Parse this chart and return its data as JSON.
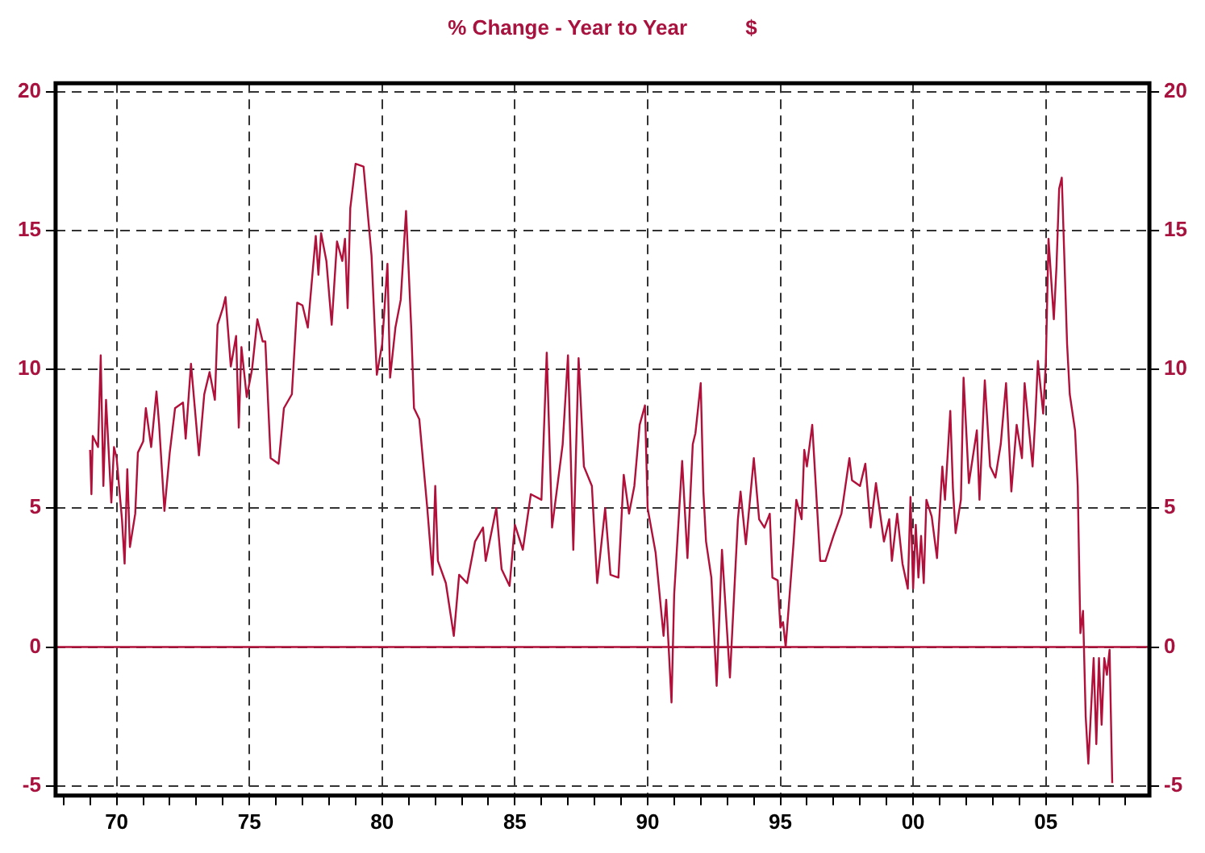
{
  "chart_data": {
    "type": "line",
    "title": "% Change - Year to Year          $",
    "xlim": [
      1967.7,
      2008.9
    ],
    "xticks": [
      {
        "value": 1968,
        "label": null
      },
      {
        "value": 1969,
        "label": null
      },
      {
        "value": 1970,
        "label": "70"
      },
      {
        "value": 1971,
        "label": null
      },
      {
        "value": 1972,
        "label": null
      },
      {
        "value": 1973,
        "label": null
      },
      {
        "value": 1974,
        "label": null
      },
      {
        "value": 1975,
        "label": "75"
      },
      {
        "value": 1976,
        "label": null
      },
      {
        "value": 1977,
        "label": null
      },
      {
        "value": 1978,
        "label": null
      },
      {
        "value": 1979,
        "label": null
      },
      {
        "value": 1980,
        "label": "80"
      },
      {
        "value": 1981,
        "label": null
      },
      {
        "value": 1982,
        "label": null
      },
      {
        "value": 1983,
        "label": null
      },
      {
        "value": 1984,
        "label": null
      },
      {
        "value": 1985,
        "label": "85"
      },
      {
        "value": 1986,
        "label": null
      },
      {
        "value": 1987,
        "label": null
      },
      {
        "value": 1988,
        "label": null
      },
      {
        "value": 1989,
        "label": null
      },
      {
        "value": 1990,
        "label": "90"
      },
      {
        "value": 1991,
        "label": null
      },
      {
        "value": 1992,
        "label": null
      },
      {
        "value": 1993,
        "label": null
      },
      {
        "value": 1994,
        "label": null
      },
      {
        "value": 1995,
        "label": "95"
      },
      {
        "value": 1996,
        "label": null
      },
      {
        "value": 1997,
        "label": null
      },
      {
        "value": 1998,
        "label": null
      },
      {
        "value": 1999,
        "label": null
      },
      {
        "value": 2000,
        "label": "00"
      },
      {
        "value": 2001,
        "label": null
      },
      {
        "value": 2002,
        "label": null
      },
      {
        "value": 2003,
        "label": null
      },
      {
        "value": 2004,
        "label": null
      },
      {
        "value": 2005,
        "label": "05"
      },
      {
        "value": 2006,
        "label": null
      },
      {
        "value": 2007,
        "label": null
      },
      {
        "value": 2008,
        "label": null
      }
    ],
    "ylim": [
      -5.35,
      20.3
    ],
    "yticks": [
      -5,
      0,
      5,
      10,
      15,
      20
    ],
    "y2lim": [
      -5.35,
      20.3
    ],
    "y2ticks": [
      -5,
      0,
      5,
      10,
      15,
      20
    ],
    "grid": true,
    "legend": false,
    "marker": "none",
    "line_style": "solid",
    "ref_lines": [
      {
        "axis": "y",
        "value": 0,
        "color": "#b0103a"
      }
    ],
    "x": [
      1969.0,
      1969.05,
      1969.1,
      1969.3,
      1969.4,
      1969.5,
      1969.6,
      1969.8,
      1969.9,
      1970.0,
      1970.2,
      1970.3,
      1970.4,
      1970.5,
      1970.7,
      1970.8,
      1971.0,
      1971.1,
      1971.3,
      1971.5,
      1971.6,
      1971.8,
      1972.0,
      1972.2,
      1972.5,
      1972.6,
      1972.8,
      1973.1,
      1973.3,
      1973.5,
      1973.7,
      1973.8,
      1974.0,
      1974.1,
      1974.3,
      1974.5,
      1974.6,
      1974.7,
      1974.9,
      1975.1,
      1975.3,
      1975.5,
      1975.6,
      1975.8,
      1976.1,
      1976.3,
      1976.6,
      1976.8,
      1977.0,
      1977.2,
      1977.5,
      1977.6,
      1977.7,
      1977.9,
      1978.1,
      1978.3,
      1978.5,
      1978.6,
      1978.7,
      1978.8,
      1979.0,
      1979.3,
      1979.6,
      1979.8,
      1980.0,
      1980.2,
      1980.3,
      1980.5,
      1980.7,
      1980.9,
      1981.1,
      1981.2,
      1981.4,
      1981.7,
      1981.9,
      1982.0,
      1982.1,
      1982.4,
      1982.7,
      1982.9,
      1983.2,
      1983.5,
      1983.8,
      1983.9,
      1984.3,
      1984.5,
      1984.8,
      1985.0,
      1985.3,
      1985.6,
      1986.0,
      1986.2,
      1986.4,
      1986.8,
      1987.0,
      1987.2,
      1987.4,
      1987.6,
      1987.9,
      1988.1,
      1988.4,
      1988.6,
      1988.9,
      1989.1,
      1989.3,
      1989.5,
      1989.7,
      1989.9,
      1990.0,
      1990.3,
      1990.6,
      1990.7,
      1990.9,
      1991.0,
      1991.3,
      1991.5,
      1991.7,
      1991.8,
      1992.0,
      1992.1,
      1992.2,
      1992.4,
      1992.6,
      1992.8,
      1993.1,
      1993.4,
      1993.5,
      1993.7,
      1994.0,
      1994.2,
      1994.4,
      1994.6,
      1994.7,
      1994.9,
      1995.0,
      1995.1,
      1995.2,
      1995.5,
      1995.6,
      1995.8,
      1995.9,
      1996.0,
      1996.2,
      1996.5,
      1996.7,
      1997.0,
      1997.3,
      1997.6,
      1997.7,
      1998.0,
      1998.2,
      1998.4,
      1998.6,
      1998.9,
      1999.1,
      1999.2,
      1999.4,
      1999.6,
      1999.8,
      1999.9,
      2000.0,
      2000.1,
      2000.2,
      2000.3,
      2000.4,
      2000.5,
      2000.7,
      2000.9,
      2001.1,
      2001.2,
      2001.4,
      2001.5,
      2001.6,
      2001.8,
      2001.9,
      2002.1,
      2002.4,
      2002.5,
      2002.7,
      2002.9,
      2003.1,
      2003.3,
      2003.5,
      2003.7,
      2003.9,
      2004.1,
      2004.2,
      2004.5,
      2004.6,
      2004.7,
      2004.9,
      2005.0,
      2005.1,
      2005.3,
      2005.4,
      2005.5,
      2005.6,
      2005.8,
      2005.9,
      2006.1,
      2006.2,
      2006.3,
      2006.4,
      2006.5,
      2006.6,
      2006.8,
      2006.9,
      2007.0,
      2007.1,
      2007.2,
      2007.3,
      2007.4,
      2007.5
    ],
    "series": [
      {
        "color": "#b0103a",
        "values": [
          7.1,
          5.5,
          7.6,
          7.2,
          10.5,
          5.8,
          8.9,
          5.2,
          7.2,
          6.8,
          4.6,
          3.0,
          6.4,
          3.6,
          4.8,
          7.0,
          7.4,
          8.6,
          7.2,
          9.2,
          8.0,
          4.9,
          7.0,
          8.6,
          8.8,
          7.5,
          10.2,
          6.9,
          9.1,
          9.9,
          8.9,
          11.6,
          12.2,
          12.6,
          10.1,
          11.2,
          7.9,
          10.8,
          9.0,
          10.0,
          11.8,
          11.0,
          11.0,
          6.8,
          6.6,
          8.6,
          9.1,
          12.4,
          12.3,
          11.5,
          14.8,
          13.4,
          14.9,
          13.9,
          11.6,
          14.6,
          13.9,
          14.7,
          12.2,
          15.8,
          17.4,
          17.3,
          14.1,
          9.8,
          10.9,
          13.8,
          9.7,
          11.5,
          12.5,
          15.7,
          11.4,
          8.6,
          8.2,
          5.0,
          2.6,
          5.8,
          3.1,
          2.3,
          0.4,
          2.6,
          2.3,
          3.8,
          4.3,
          3.1,
          5.0,
          2.8,
          2.2,
          4.4,
          3.5,
          5.5,
          5.3,
          10.6,
          4.3,
          7.3,
          10.5,
          3.5,
          10.4,
          6.5,
          5.8,
          2.3,
          5.0,
          2.6,
          2.5,
          6.2,
          4.8,
          5.8,
          8.0,
          8.7,
          5.0,
          3.4,
          0.4,
          1.7,
          -2.0,
          1.9,
          6.7,
          3.2,
          7.3,
          7.7,
          9.5,
          5.6,
          3.8,
          2.5,
          -1.4,
          3.5,
          -1.1,
          4.6,
          5.6,
          3.7,
          6.8,
          4.6,
          4.3,
          4.8,
          2.5,
          2.4,
          0.7,
          0.9,
          0.0,
          3.8,
          5.3,
          4.6,
          7.1,
          6.5,
          8.0,
          3.1,
          3.1,
          4.0,
          4.8,
          6.8,
          6.0,
          5.8,
          6.6,
          4.3,
          5.9,
          3.8,
          4.6,
          3.1,
          4.8,
          3.0,
          2.1,
          5.4,
          2.1,
          4.4,
          2.5,
          4.0,
          2.3,
          5.3,
          4.7,
          3.2,
          6.5,
          5.3,
          8.5,
          5.7,
          4.1,
          5.3,
          9.7,
          5.9,
          7.8,
          5.3,
          9.6,
          6.5,
          6.1,
          7.3,
          9.5,
          5.6,
          8.0,
          6.8,
          9.5,
          6.5,
          8.2,
          10.3,
          8.4,
          10.3,
          14.7,
          11.8,
          13.7,
          16.5,
          16.9,
          10.9,
          9.1,
          7.8,
          5.8,
          0.5,
          1.3,
          -2.5,
          -4.2,
          -0.4,
          -3.5,
          -0.4,
          -2.8,
          -0.4,
          -1.0,
          -0.1,
          -4.9
        ]
      }
    ]
  }
}
